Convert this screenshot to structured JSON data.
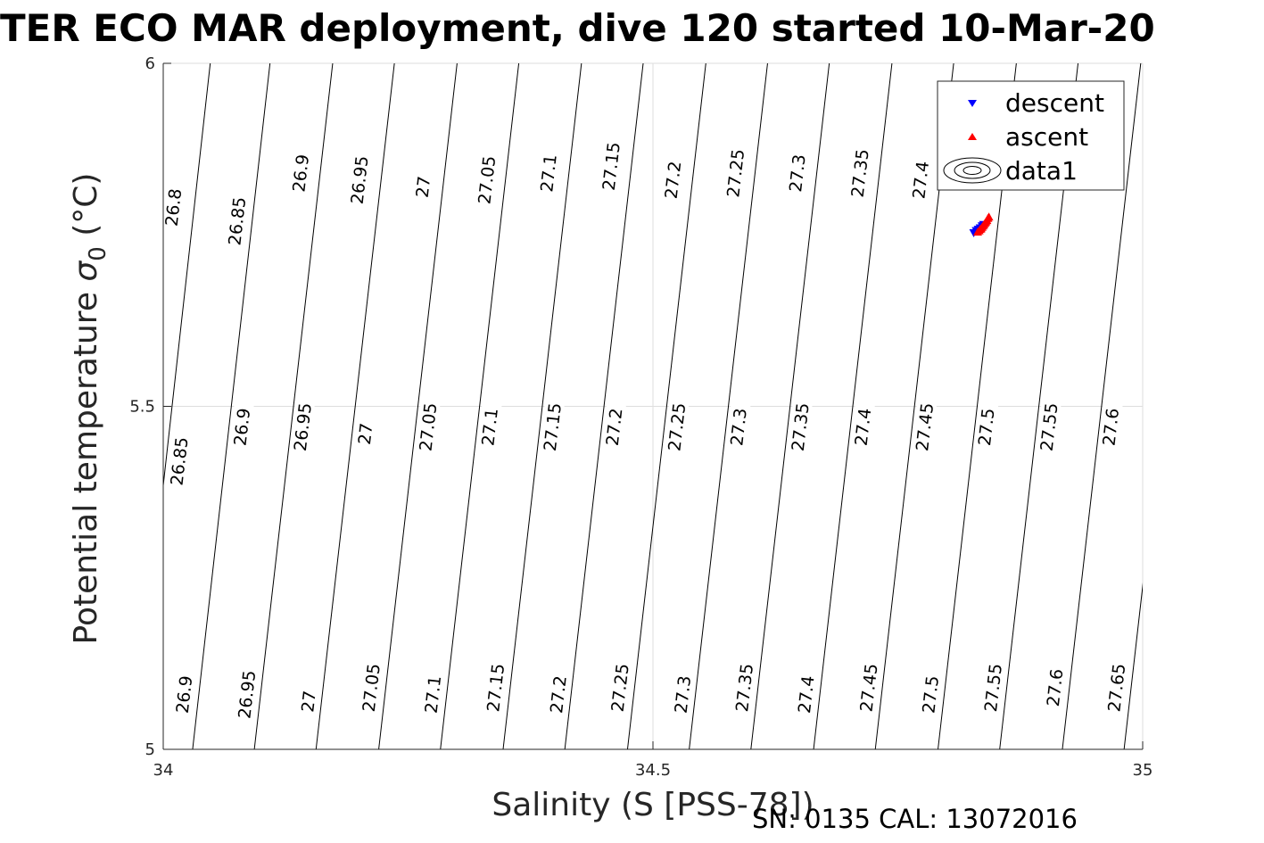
{
  "chart_data": {
    "type": "scatter",
    "title": "TER ECO MAR deployment, dive 120 started 10-Mar-20",
    "xlabel": "Salinity (S [PSS-78])",
    "ylabel_main": "Potential temperature ",
    "ylabel_sigma": "σ",
    "ylabel_sub": "0",
    "ylabel_unit": " (°C)",
    "xlim": [
      34,
      35
    ],
    "ylim": [
      5,
      6
    ],
    "x_ticks": [
      {
        "value": 34,
        "label": "34"
      },
      {
        "value": 34.5,
        "label": "34.5"
      },
      {
        "value": 35,
        "label": "35"
      }
    ],
    "y_ticks": [
      {
        "value": 5,
        "label": "5"
      },
      {
        "value": 5.5,
        "label": "5.5"
      },
      {
        "value": 6,
        "label": "6"
      }
    ],
    "grid": true,
    "isopycnal_slope": 12.6,
    "isopycnals": [
      {
        "value": 26.8,
        "label": "26.8"
      },
      {
        "value": 26.85,
        "label": "26.85"
      },
      {
        "value": 26.9,
        "label": "26.9"
      },
      {
        "value": 26.95,
        "label": "26.95"
      },
      {
        "value": 27.0,
        "label": "27"
      },
      {
        "value": 27.05,
        "label": "27.05"
      },
      {
        "value": 27.1,
        "label": "27.1"
      },
      {
        "value": 27.15,
        "label": "27.15"
      },
      {
        "value": 27.2,
        "label": "27.2"
      },
      {
        "value": 27.25,
        "label": "27.25"
      },
      {
        "value": 27.3,
        "label": "27.3"
      },
      {
        "value": 27.35,
        "label": "27.35"
      },
      {
        "value": 27.4,
        "label": "27.4"
      },
      {
        "value": 27.45,
        "label": "27.45"
      },
      {
        "value": 27.5,
        "label": "27.5"
      },
      {
        "value": 27.55,
        "label": "27.55"
      },
      {
        "value": 27.6,
        "label": "27.6"
      },
      {
        "value": 27.65,
        "label": "27.65"
      },
      {
        "value": 27.7,
        "label": ""
      }
    ],
    "isopycnal_anchors": [
      {
        "value": 26.8,
        "temp": 6.0,
        "salinity": 34.048
      },
      {
        "value": 26.8,
        "temp": 5.0,
        "salinity": 33.97
      },
      {
        "value": 26.85,
        "temp": 6.0,
        "salinity": 34.109
      },
      {
        "value": 26.85,
        "temp": 5.0,
        "salinity": 34.03
      },
      {
        "value": 26.9,
        "temp": 6.0,
        "salinity": 34.173
      },
      {
        "value": 26.9,
        "temp": 5.0,
        "salinity": 34.093
      },
      {
        "value": 26.95,
        "temp": 6.0,
        "salinity": 34.236
      },
      {
        "value": 26.95,
        "temp": 5.0,
        "salinity": 34.156
      },
      {
        "value": 27.0,
        "temp": 6.0,
        "salinity": 34.3
      },
      {
        "value": 27.0,
        "temp": 5.0,
        "salinity": 34.22
      },
      {
        "value": 27.05,
        "temp": 6.0,
        "salinity": 34.363
      },
      {
        "value": 27.05,
        "temp": 5.0,
        "salinity": 34.283
      },
      {
        "value": 27.1,
        "temp": 6.0,
        "salinity": 34.427
      },
      {
        "value": 27.1,
        "temp": 5.0,
        "salinity": 34.347
      },
      {
        "value": 27.15,
        "temp": 6.0,
        "salinity": 34.49
      },
      {
        "value": 27.15,
        "temp": 5.0,
        "salinity": 34.41
      },
      {
        "value": 27.2,
        "temp": 6.0,
        "salinity": 34.554
      },
      {
        "value": 27.2,
        "temp": 5.0,
        "salinity": 34.474
      },
      {
        "value": 27.25,
        "temp": 6.0,
        "salinity": 34.617
      },
      {
        "value": 27.25,
        "temp": 5.0,
        "salinity": 34.537
      },
      {
        "value": 27.3,
        "temp": 6.0,
        "salinity": 34.68
      },
      {
        "value": 27.3,
        "temp": 5.0,
        "salinity": 34.6
      },
      {
        "value": 27.35,
        "temp": 6.0,
        "salinity": 34.744
      },
      {
        "value": 27.35,
        "temp": 5.0,
        "salinity": 34.664
      },
      {
        "value": 27.4,
        "temp": 6.0,
        "salinity": 34.807
      },
      {
        "value": 27.4,
        "temp": 5.0,
        "salinity": 34.727
      },
      {
        "value": 27.45,
        "temp": 6.0,
        "salinity": 34.871
      },
      {
        "value": 27.45,
        "temp": 5.0,
        "salinity": 34.791
      },
      {
        "value": 27.5,
        "temp": 6.0,
        "salinity": 34.934
      },
      {
        "value": 27.5,
        "temp": 5.0,
        "salinity": 34.854
      },
      {
        "value": 27.55,
        "temp": 6.0,
        "salinity": 34.998
      },
      {
        "value": 27.55,
        "temp": 5.0,
        "salinity": 34.918
      },
      {
        "value": 27.6,
        "temp": 6.0,
        "salinity": 35.061
      },
      {
        "value": 27.6,
        "temp": 5.0,
        "salinity": 34.981
      },
      {
        "value": 27.65,
        "temp": 6.0,
        "salinity": 35.125
      },
      {
        "value": 27.65,
        "temp": 5.0,
        "salinity": 35.045
      },
      {
        "value": 27.7,
        "temp": 6.0,
        "salinity": 35.188
      },
      {
        "value": 27.7,
        "temp": 5.0,
        "salinity": 35.108
      }
    ],
    "contour_labels": [
      {
        "label": "26.8",
        "salinity": 34.01,
        "temp": 5.79
      },
      {
        "label": "26.85",
        "salinity": 34.075,
        "temp": 5.77
      },
      {
        "label": "26.9",
        "salinity": 34.14,
        "temp": 5.84
      },
      {
        "label": "26.95",
        "salinity": 34.2,
        "temp": 5.83
      },
      {
        "label": "27",
        "salinity": 34.265,
        "temp": 5.82
      },
      {
        "label": "27.05",
        "salinity": 34.33,
        "temp": 5.83
      },
      {
        "label": "27.1",
        "salinity": 34.393,
        "temp": 5.84
      },
      {
        "label": "27.15",
        "salinity": 34.457,
        "temp": 5.85
      },
      {
        "label": "27.2",
        "salinity": 34.52,
        "temp": 5.83
      },
      {
        "label": "27.25",
        "salinity": 34.584,
        "temp": 5.84
      },
      {
        "label": "27.3",
        "salinity": 34.647,
        "temp": 5.84
      },
      {
        "label": "27.35",
        "salinity": 34.711,
        "temp": 5.84
      },
      {
        "label": "27.4",
        "salinity": 34.773,
        "temp": 5.83
      },
      {
        "label": "26.85",
        "salinity": 34.016,
        "temp": 5.42
      },
      {
        "label": "26.9",
        "salinity": 34.08,
        "temp": 5.47
      },
      {
        "label": "26.95",
        "salinity": 34.142,
        "temp": 5.47
      },
      {
        "label": "27",
        "salinity": 34.206,
        "temp": 5.46
      },
      {
        "label": "27.05",
        "salinity": 34.27,
        "temp": 5.47
      },
      {
        "label": "27.1",
        "salinity": 34.333,
        "temp": 5.47
      },
      {
        "label": "27.15",
        "salinity": 34.397,
        "temp": 5.47
      },
      {
        "label": "27.2",
        "salinity": 34.46,
        "temp": 5.47
      },
      {
        "label": "27.25",
        "salinity": 34.524,
        "temp": 5.47
      },
      {
        "label": "27.3",
        "salinity": 34.587,
        "temp": 5.47
      },
      {
        "label": "27.35",
        "salinity": 34.65,
        "temp": 5.47
      },
      {
        "label": "27.4",
        "salinity": 34.714,
        "temp": 5.47
      },
      {
        "label": "27.45",
        "salinity": 34.777,
        "temp": 5.47
      },
      {
        "label": "27.5",
        "salinity": 34.84,
        "temp": 5.47
      },
      {
        "label": "27.55",
        "salinity": 34.904,
        "temp": 5.47
      },
      {
        "label": "27.6",
        "salinity": 34.967,
        "temp": 5.47
      },
      {
        "label": "26.9",
        "salinity": 34.021,
        "temp": 5.08
      },
      {
        "label": "26.95",
        "salinity": 34.085,
        "temp": 5.08
      },
      {
        "label": "27",
        "salinity": 34.148,
        "temp": 5.07
      },
      {
        "label": "27.05",
        "salinity": 34.212,
        "temp": 5.09
      },
      {
        "label": "27.1",
        "salinity": 34.275,
        "temp": 5.08
      },
      {
        "label": "27.15",
        "salinity": 34.339,
        "temp": 5.09
      },
      {
        "label": "27.2",
        "salinity": 34.403,
        "temp": 5.08
      },
      {
        "label": "27.25",
        "salinity": 34.466,
        "temp": 5.09
      },
      {
        "label": "27.3",
        "salinity": 34.53,
        "temp": 5.08
      },
      {
        "label": "27.35",
        "salinity": 34.593,
        "temp": 5.09
      },
      {
        "label": "27.4",
        "salinity": 34.656,
        "temp": 5.08
      },
      {
        "label": "27.45",
        "salinity": 34.72,
        "temp": 5.09
      },
      {
        "label": "27.5",
        "salinity": 34.783,
        "temp": 5.08
      },
      {
        "label": "27.55",
        "salinity": 34.847,
        "temp": 5.09
      },
      {
        "label": "27.6",
        "salinity": 34.91,
        "temp": 5.09
      },
      {
        "label": "27.65",
        "salinity": 34.973,
        "temp": 5.09
      }
    ],
    "series": [
      {
        "name": "descent",
        "marker": "triangle-down",
        "color": "#0000ff",
        "points": [
          {
            "x": 34.8275,
            "y": 5.753
          },
          {
            "x": 34.83,
            "y": 5.756
          },
          {
            "x": 34.832,
            "y": 5.758
          },
          {
            "x": 34.834,
            "y": 5.76
          },
          {
            "x": 34.836,
            "y": 5.763
          },
          {
            "x": 34.8375,
            "y": 5.765
          }
        ]
      },
      {
        "name": "ascent",
        "marker": "triangle-up",
        "color": "#ff0000",
        "points": [
          {
            "x": 34.8315,
            "y": 5.754
          },
          {
            "x": 34.833,
            "y": 5.756
          },
          {
            "x": 34.834,
            "y": 5.758
          },
          {
            "x": 34.835,
            "y": 5.759
          },
          {
            "x": 34.836,
            "y": 5.761
          },
          {
            "x": 34.837,
            "y": 5.763
          },
          {
            "x": 34.838,
            "y": 5.765
          },
          {
            "x": 34.839,
            "y": 5.767
          },
          {
            "x": 34.84,
            "y": 5.769
          },
          {
            "x": 34.841,
            "y": 5.771
          },
          {
            "x": 34.842,
            "y": 5.774
          },
          {
            "x": 34.843,
            "y": 5.776
          }
        ]
      }
    ],
    "legend": {
      "position": "top-right",
      "entries": [
        {
          "label": "descent",
          "marker": "triangle-down",
          "color": "#0000ff"
        },
        {
          "label": "ascent",
          "marker": "triangle-up",
          "color": "#ff0000"
        },
        {
          "label": "data1",
          "marker": "contour"
        }
      ]
    },
    "footer": "SN: 0135  CAL: 13072016"
  }
}
